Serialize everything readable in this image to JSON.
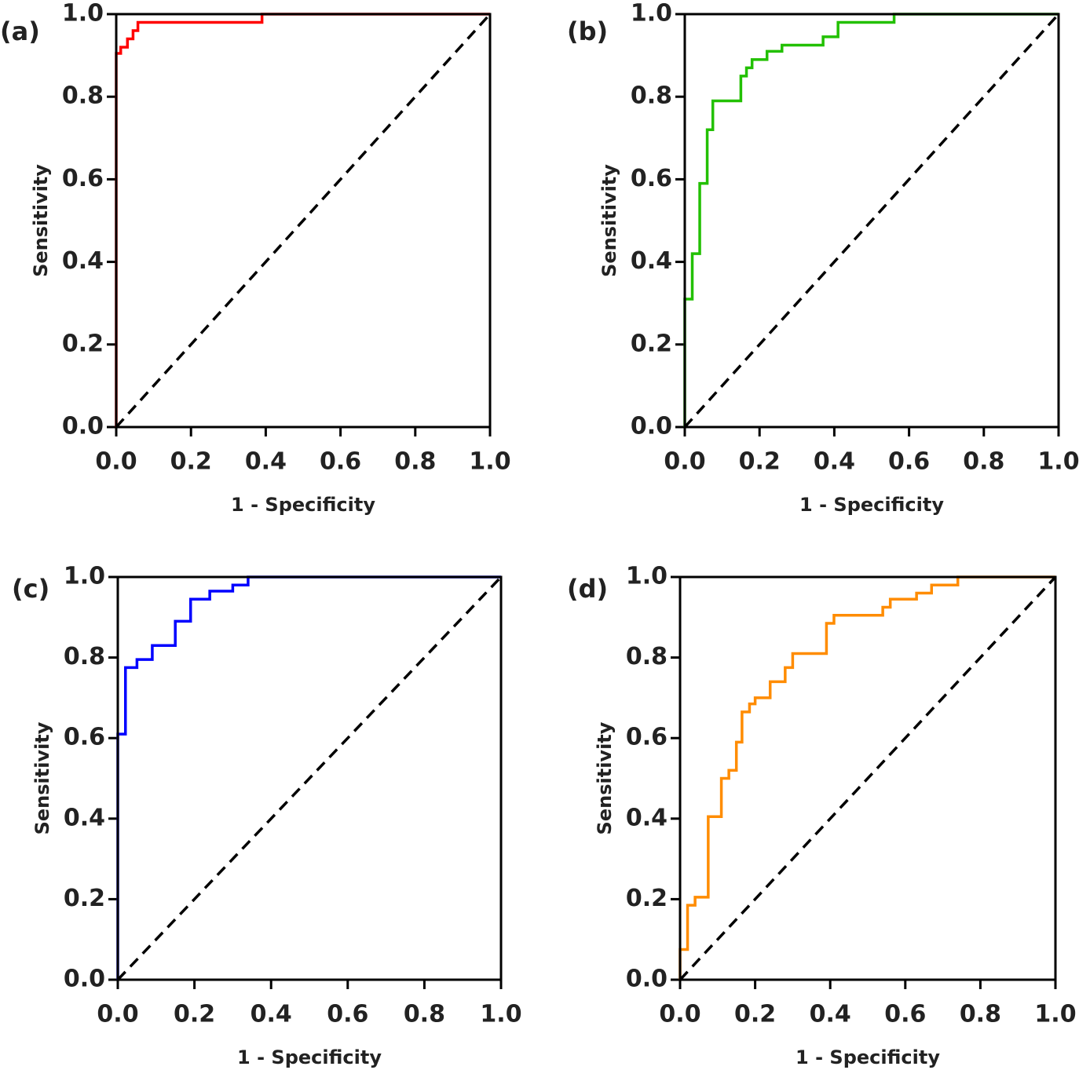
{
  "chart_data": [
    {
      "type": "line",
      "title": "(a)",
      "x_label": "1 - Specificity",
      "y_label": "Sensitivity",
      "xlim": [
        0,
        1
      ],
      "ylim": [
        0,
        1
      ],
      "xticks": [
        {
          "value": 0,
          "label": "0.0"
        },
        0.2,
        0.4,
        0.6,
        0.8,
        {
          "value": 1,
          "label": "1.0"
        }
      ],
      "yticks": [
        {
          "value": 0,
          "label": "0.0"
        },
        0.2,
        0.4,
        0.6,
        0.8,
        {
          "value": 1,
          "label": "1.0"
        }
      ],
      "series": [
        {
          "color": "#ff0000",
          "x": [
            0,
            0,
            0.012,
            0.012,
            0.03,
            0.03,
            0.045,
            0.045,
            0.058,
            0.058,
            0.39,
            0.39,
            1
          ],
          "values": [
            0,
            0.905,
            0.905,
            0.92,
            0.92,
            0.94,
            0.94,
            0.96,
            0.96,
            0.98,
            0.98,
            1,
            1
          ]
        },
        {
          "color": "#000000",
          "dash": true,
          "x": [
            0,
            1
          ],
          "values": [
            0,
            1
          ]
        }
      ]
    },
    {
      "type": "line",
      "title": "(b)",
      "x_label": "1 - Specificity",
      "y_label": "Sensitivity",
      "xlim": [
        0,
        1
      ],
      "ylim": [
        0,
        1
      ],
      "xticks": [
        {
          "value": 0,
          "label": "0.0"
        },
        0.2,
        0.4,
        0.6,
        0.8,
        {
          "value": 1,
          "label": "1.0"
        }
      ],
      "yticks": [
        {
          "value": 0,
          "label": "0.0"
        },
        0.2,
        0.4,
        0.6,
        0.8,
        {
          "value": 1,
          "label": "1.0"
        }
      ],
      "series": [
        {
          "color": "#22c000",
          "x": [
            0,
            0,
            0.02,
            0.02,
            0.04,
            0.04,
            0.06,
            0.06,
            0.075,
            0.075,
            0.15,
            0.15,
            0.165,
            0.165,
            0.18,
            0.18,
            0.22,
            0.22,
            0.26,
            0.26,
            0.37,
            0.37,
            0.41,
            0.41,
            0.56,
            0.56,
            1
          ],
          "values": [
            0,
            0.31,
            0.31,
            0.42,
            0.42,
            0.59,
            0.59,
            0.72,
            0.72,
            0.79,
            0.79,
            0.85,
            0.85,
            0.87,
            0.87,
            0.89,
            0.89,
            0.91,
            0.91,
            0.925,
            0.925,
            0.945,
            0.945,
            0.98,
            0.98,
            1,
            1
          ]
        },
        {
          "color": "#000000",
          "dash": true,
          "x": [
            0,
            1
          ],
          "values": [
            0,
            1
          ]
        }
      ]
    },
    {
      "type": "line",
      "title": "(c)",
      "x_label": "1 - Specificity",
      "y_label": "Sensitivity",
      "xlim": [
        0,
        1
      ],
      "ylim": [
        0,
        1
      ],
      "xticks": [
        {
          "value": 0,
          "label": "0.0"
        },
        0.2,
        0.4,
        0.6,
        0.8,
        {
          "value": 1,
          "label": "1.0"
        }
      ],
      "yticks": [
        {
          "value": 0,
          "label": "0.0"
        },
        0.2,
        0.4,
        0.6,
        0.8,
        {
          "value": 1,
          "label": "1.0"
        }
      ],
      "series": [
        {
          "color": "#0000ff",
          "x": [
            0,
            0,
            0.02,
            0.02,
            0.05,
            0.05,
            0.09,
            0.09,
            0.15,
            0.15,
            0.19,
            0.19,
            0.24,
            0.24,
            0.3,
            0.3,
            0.34,
            0.34,
            1
          ],
          "values": [
            0,
            0.61,
            0.61,
            0.775,
            0.775,
            0.795,
            0.795,
            0.83,
            0.83,
            0.89,
            0.89,
            0.945,
            0.945,
            0.965,
            0.965,
            0.98,
            0.98,
            1,
            1
          ]
        },
        {
          "color": "#000000",
          "dash": true,
          "x": [
            0,
            1
          ],
          "values": [
            0,
            1
          ]
        }
      ]
    },
    {
      "type": "line",
      "title": "(d)",
      "x_label": "1 - Specificity",
      "y_label": "Sensitivity",
      "xlim": [
        0,
        1
      ],
      "ylim": [
        0,
        1
      ],
      "xticks": [
        {
          "value": 0,
          "label": "0.0"
        },
        0.2,
        0.4,
        0.6,
        0.8,
        {
          "value": 1,
          "label": "1.0"
        }
      ],
      "yticks": [
        {
          "value": 0,
          "label": "0.0"
        },
        0.2,
        0.4,
        0.6,
        0.8,
        {
          "value": 1,
          "label": "1.0"
        }
      ],
      "series": [
        {
          "color": "#ff8c00",
          "x": [
            0,
            0,
            0.02,
            0.02,
            0.04,
            0.04,
            0.075,
            0.075,
            0.11,
            0.11,
            0.13,
            0.13,
            0.15,
            0.15,
            0.165,
            0.165,
            0.185,
            0.185,
            0.2,
            0.2,
            0.24,
            0.24,
            0.28,
            0.28,
            0.3,
            0.3,
            0.39,
            0.39,
            0.41,
            0.41,
            0.54,
            0.54,
            0.56,
            0.56,
            0.63,
            0.63,
            0.67,
            0.67,
            0.74,
            0.74,
            1
          ],
          "values": [
            0,
            0.075,
            0.075,
            0.185,
            0.185,
            0.205,
            0.205,
            0.405,
            0.405,
            0.5,
            0.5,
            0.52,
            0.52,
            0.59,
            0.59,
            0.665,
            0.665,
            0.685,
            0.685,
            0.7,
            0.7,
            0.74,
            0.74,
            0.775,
            0.775,
            0.81,
            0.81,
            0.885,
            0.885,
            0.905,
            0.905,
            0.925,
            0.925,
            0.945,
            0.945,
            0.96,
            0.96,
            0.98,
            0.98,
            1,
            1
          ]
        },
        {
          "color": "#000000",
          "dash": true,
          "x": [
            0,
            1
          ],
          "values": [
            0,
            1
          ]
        }
      ]
    }
  ]
}
